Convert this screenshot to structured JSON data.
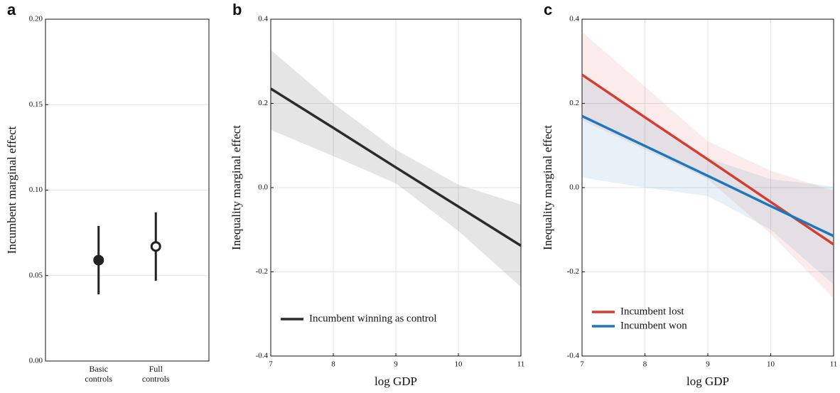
{
  "chart_data": [
    {
      "type": "errorbar",
      "label": "a",
      "ylabel": "Incumbent marginal effect",
      "categories": [
        "Basic controls",
        "Full controls"
      ],
      "values": [
        0.059,
        0.067
      ],
      "lower": [
        0.039,
        0.047
      ],
      "upper": [
        0.079,
        0.087
      ],
      "markers": [
        "filled",
        "open"
      ],
      "color": "#222222",
      "ylim": [
        0,
        0.2
      ],
      "yticks": [
        {
          "value": 0,
          "label": "0.00"
        },
        0.05,
        {
          "value": 0.1,
          "label": "0.10"
        },
        0.15,
        {
          "value": 0.2,
          "label": "0.20"
        }
      ],
      "grid": true
    },
    {
      "type": "line",
      "label": "b",
      "xlabel": "log GDP",
      "ylabel": "Inequality marginal effect",
      "xlim": [
        7,
        11
      ],
      "xticks": [
        7,
        8,
        9,
        10,
        11
      ],
      "ylim": [
        -0.4,
        0.4
      ],
      "yticks": [
        -0.4,
        -0.2,
        {
          "value": 0,
          "label": "0.0"
        },
        0.2,
        0.4
      ],
      "grid": true,
      "legend": "lower left",
      "series": [
        {
          "name": "Incumbent winning as control",
          "color": "#2b2b2b",
          "x": [
            7,
            8,
            9,
            10,
            11
          ],
          "values": [
            0.235,
            0.142,
            0.048,
            -0.045,
            -0.138
          ],
          "upper": [
            0.327,
            0.2,
            0.09,
            0.007,
            -0.04
          ],
          "lower": [
            0.137,
            0.075,
            0.01,
            -0.103,
            -0.236
          ]
        }
      ]
    },
    {
      "type": "line",
      "label": "c",
      "xlabel": "log GDP",
      "ylabel": "Inequality marginal effect",
      "xlim": [
        7,
        11
      ],
      "xticks": [
        7,
        8,
        9,
        10,
        11
      ],
      "ylim": [
        -0.4,
        0.4
      ],
      "yticks": [
        -0.4,
        -0.2,
        {
          "value": 0,
          "label": "0.0"
        },
        0.2,
        0.4
      ],
      "grid": true,
      "legend": "lower left",
      "series": [
        {
          "name": "Incumbent lost",
          "color": "#d63c30",
          "x": [
            7,
            8,
            9,
            10,
            11
          ],
          "values": [
            0.268,
            0.167,
            0.067,
            -0.034,
            -0.135
          ],
          "upper": [
            0.37,
            0.24,
            0.11,
            0.04,
            -0.007
          ],
          "lower": [
            0.16,
            0.09,
            0.02,
            -0.11,
            -0.263
          ]
        },
        {
          "name": "Incumbent won",
          "color": "#1a78be",
          "x": [
            7,
            8,
            9,
            10,
            11
          ],
          "values": [
            0.17,
            0.099,
            0.028,
            -0.044,
            -0.115
          ],
          "upper": [
            0.263,
            0.17,
            0.07,
            0.02,
            0.003
          ],
          "lower": [
            0.024,
            0.0,
            -0.02,
            -0.1,
            -0.23
          ]
        }
      ]
    }
  ]
}
